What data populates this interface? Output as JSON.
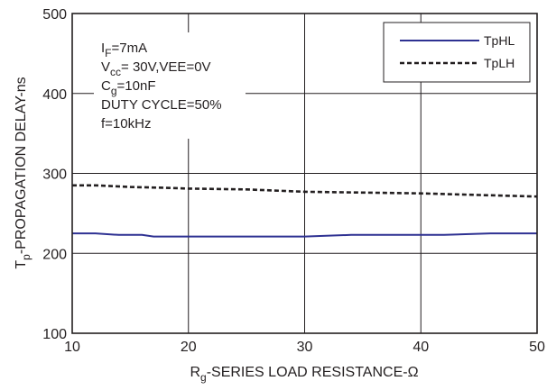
{
  "chart_data": {
    "type": "line",
    "xlabel": {
      "prefix": "R",
      "sub": "g",
      "suffix": "-SERIES LOAD RESISTANCE-Ω"
    },
    "ylabel": {
      "prefix": "T",
      "sub": "p",
      "suffix": "-PROPAGATION DELAY-ns"
    },
    "xlim": [
      10,
      50
    ],
    "ylim": [
      100,
      500
    ],
    "xticks": [
      10,
      20,
      30,
      40,
      50
    ],
    "yticks": [
      100,
      200,
      300,
      400,
      500
    ],
    "grid": true,
    "legend_position": "top-right",
    "series": [
      {
        "name": "TpHL",
        "color": "#2e3192",
        "dash": "solid",
        "x": [
          10,
          12,
          14,
          16,
          17,
          20,
          25,
          30,
          34,
          38,
          42,
          46,
          50
        ],
        "y": [
          225,
          225,
          223,
          223,
          221,
          221,
          221,
          221,
          223,
          223,
          223,
          225,
          225
        ]
      },
      {
        "name": "TpLH",
        "color": "#231f20",
        "dash": "dashed",
        "x": [
          10,
          12,
          15,
          18,
          20,
          25,
          30,
          35,
          40,
          45,
          50
        ],
        "y": [
          285,
          285,
          283,
          282,
          281,
          280,
          277,
          276,
          275,
          273,
          271
        ]
      }
    ],
    "annotations": [
      {
        "prefix": "I",
        "sub": "F",
        "suffix": "=7mA"
      },
      {
        "prefix": "V",
        "sub": "cc",
        "suffix": "= 30V,VEE=0V"
      },
      {
        "prefix": "C",
        "sub": "g",
        "suffix": "=10nF"
      },
      {
        "prefix": "DUTY CYCLE=50%",
        "sub": "",
        "suffix": ""
      },
      {
        "prefix": "f=10kHz",
        "sub": "",
        "suffix": ""
      }
    ]
  }
}
